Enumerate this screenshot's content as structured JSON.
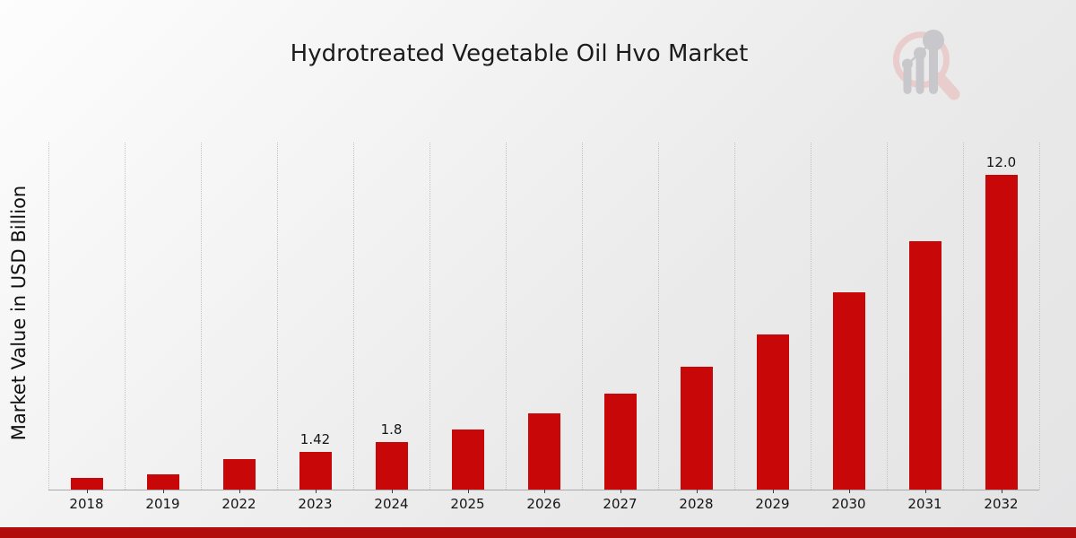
{
  "title": "Hydrotreated Vegetable Oil Hvo Market",
  "colors": {
    "bar": "#c80808",
    "footer_strip": "#b20d0d",
    "grid": "#c2c2c2",
    "axis": "#a9a9a9",
    "text": "#1b1b1b",
    "logo_pink": "#e9cdcd",
    "logo_gray": "#c8c8cc"
  },
  "chart_data": {
    "type": "bar",
    "title": "Hydrotreated Vegetable Oil Hvo Market",
    "xlabel": "",
    "ylabel": "Market Value in USD Billion",
    "categories": [
      "2018",
      "2019",
      "2022",
      "2023",
      "2024",
      "2025",
      "2026",
      "2027",
      "2028",
      "2029",
      "2030",
      "2031",
      "2032"
    ],
    "values": [
      0.44,
      0.58,
      1.15,
      1.42,
      1.8,
      2.28,
      2.9,
      3.67,
      4.67,
      5.92,
      7.5,
      9.47,
      12.0
    ],
    "bar_labels": [
      "",
      "",
      "",
      "1.42",
      "1.8",
      "",
      "",
      "",
      "",
      "",
      "",
      "",
      "12.0"
    ],
    "unit": "USD Billion",
    "ylim": [
      0,
      13.25
    ],
    "y_axis_tick_labels": "none",
    "grid": "vertical dotted lines at category boundaries",
    "legend": "none",
    "bar_color": "#c80808"
  },
  "logo": {
    "name": "bar-chart-magnifier-watermark-logo"
  }
}
